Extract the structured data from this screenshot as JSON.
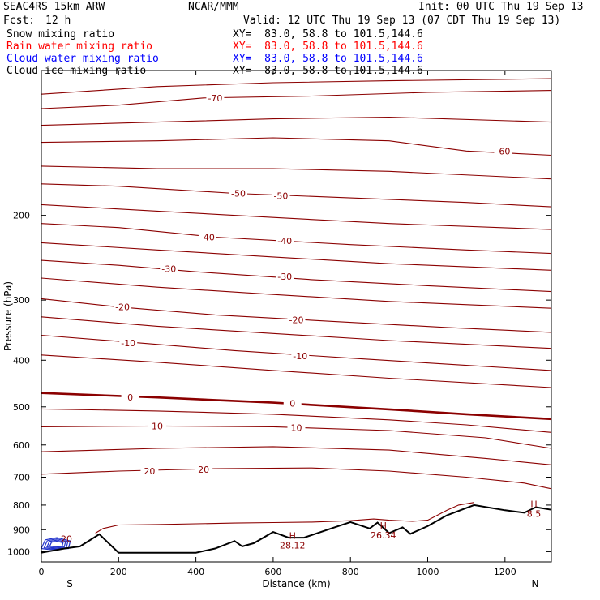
{
  "header": {
    "model": "SEAC4RS 15km ARW",
    "org": "NCAR/MMM",
    "init": "Init: 00 UTC Thu 19 Sep 13",
    "fcst_label": "Fcst:",
    "fcst_value": "12 h",
    "valid": "Valid: 12 UTC Thu 19 Sep 13 (07 CDT Thu 19 Sep 13)"
  },
  "fields": [
    {
      "name": "Snow mixing ratio",
      "xy": "XY=  83.0, 58.8 to 101.5,144.6",
      "color": "#000000"
    },
    {
      "name": "Rain water mixing ratio",
      "xy": "XY=  83.0, 58.8 to 101.5,144.6",
      "color": "#ff0000"
    },
    {
      "name": "Cloud water mixing ratio",
      "xy": "XY=  83.0, 58.8 to 101.5,144.6",
      "color": "#0000ff"
    },
    {
      "name": "Cloud ice mixing ratio",
      "xy": "XY=  83.0, 58.8 to 101.5,144.6",
      "color": "#000000"
    }
  ],
  "colors": {
    "temperature": "#8b0000",
    "cloud_water": "#2233cc",
    "terrain": "#000000"
  },
  "chart_data": {
    "type": "line",
    "xlabel": "Distance (km)",
    "ylabel": "Pressure (hPa)",
    "xlim": [
      0,
      1320
    ],
    "ylim": [
      1050,
      100
    ],
    "y_scale": "log",
    "x_ticks": [
      0,
      200,
      400,
      600,
      800,
      1000,
      1200
    ],
    "y_ticks": [
      200,
      300,
      400,
      500,
      600,
      700,
      800,
      900,
      1000
    ],
    "x_end_labels": {
      "left": "S",
      "right": "N"
    },
    "temperature_contours": [
      {
        "t": -75,
        "pts": [
          [
            0,
            112
          ],
          [
            300,
            108
          ],
          [
            600,
            106
          ],
          [
            900,
            105
          ],
          [
            1320,
            104
          ]
        ]
      },
      {
        "t": -70,
        "pts": [
          [
            0,
            120
          ],
          [
            200,
            118
          ],
          [
            420,
            114
          ],
          [
            700,
            113
          ],
          [
            1000,
            111
          ],
          [
            1320,
            110
          ]
        ]
      },
      {
        "t": -65,
        "pts": [
          [
            0,
            130
          ],
          [
            300,
            128
          ],
          [
            600,
            126
          ],
          [
            900,
            125
          ],
          [
            1320,
            128
          ]
        ]
      },
      {
        "t": -60,
        "pts": [
          [
            0,
            141
          ],
          [
            300,
            140
          ],
          [
            600,
            138
          ],
          [
            900,
            140
          ],
          [
            1100,
            147
          ],
          [
            1320,
            150
          ]
        ]
      },
      {
        "t": -55,
        "pts": [
          [
            0,
            158
          ],
          [
            300,
            160
          ],
          [
            600,
            160
          ],
          [
            900,
            162
          ],
          [
            1320,
            168
          ]
        ]
      },
      {
        "t": -50,
        "pts": [
          [
            0,
            172
          ],
          [
            200,
            174
          ],
          [
            500,
            180
          ],
          [
            800,
            184
          ],
          [
            1100,
            188
          ],
          [
            1320,
            192
          ]
        ]
      },
      {
        "t": -45,
        "pts": [
          [
            0,
            190
          ],
          [
            300,
            196
          ],
          [
            600,
            202
          ],
          [
            900,
            208
          ],
          [
            1320,
            214
          ]
        ]
      },
      {
        "t": -40,
        "pts": [
          [
            0,
            208
          ],
          [
            200,
            212
          ],
          [
            450,
            222
          ],
          [
            800,
            230
          ],
          [
            1100,
            236
          ],
          [
            1320,
            240
          ]
        ]
      },
      {
        "t": -35,
        "pts": [
          [
            0,
            228
          ],
          [
            300,
            236
          ],
          [
            600,
            244
          ],
          [
            900,
            252
          ],
          [
            1320,
            260
          ]
        ]
      },
      {
        "t": -30,
        "pts": [
          [
            0,
            248
          ],
          [
            200,
            254
          ],
          [
            400,
            262
          ],
          [
            700,
            272
          ],
          [
            1000,
            280
          ],
          [
            1320,
            288
          ]
        ]
      },
      {
        "t": -25,
        "pts": [
          [
            0,
            270
          ],
          [
            300,
            282
          ],
          [
            600,
            292
          ],
          [
            900,
            302
          ],
          [
            1320,
            312
          ]
        ]
      },
      {
        "t": -20,
        "pts": [
          [
            0,
            298
          ],
          [
            200,
            310
          ],
          [
            450,
            322
          ],
          [
            750,
            332
          ],
          [
            1050,
            342
          ],
          [
            1320,
            350
          ]
        ]
      },
      {
        "t": -15,
        "pts": [
          [
            0,
            325
          ],
          [
            300,
            340
          ],
          [
            600,
            352
          ],
          [
            900,
            364
          ],
          [
            1320,
            378
          ]
        ]
      },
      {
        "t": -10,
        "pts": [
          [
            0,
            355
          ],
          [
            250,
            368
          ],
          [
            500,
            382
          ],
          [
            800,
            396
          ],
          [
            1100,
            410
          ],
          [
            1320,
            420
          ]
        ]
      },
      {
        "t": -5,
        "pts": [
          [
            0,
            390
          ],
          [
            300,
            404
          ],
          [
            600,
            420
          ],
          [
            900,
            436
          ],
          [
            1320,
            456
          ]
        ]
      },
      {
        "t": 0,
        "pts": [
          [
            0,
            468
          ],
          [
            300,
            478
          ],
          [
            600,
            490
          ],
          [
            900,
            506
          ],
          [
            1100,
            518
          ],
          [
            1320,
            530
          ]
        ]
      },
      {
        "t": 5,
        "pts": [
          [
            0,
            505
          ],
          [
            300,
            510
          ],
          [
            600,
            518
          ],
          [
            900,
            532
          ],
          [
            1100,
            545
          ],
          [
            1320,
            565
          ]
        ]
      },
      {
        "t": 10,
        "pts": [
          [
            0,
            550
          ],
          [
            300,
            548
          ],
          [
            600,
            550
          ],
          [
            900,
            560
          ],
          [
            1150,
            580
          ],
          [
            1320,
            610
          ]
        ]
      },
      {
        "t": 15,
        "pts": [
          [
            0,
            620
          ],
          [
            300,
            610
          ],
          [
            600,
            605
          ],
          [
            900,
            615
          ],
          [
            1150,
            640
          ],
          [
            1320,
            660
          ]
        ]
      },
      {
        "t": 20,
        "pts": [
          [
            0,
            690
          ],
          [
            200,
            680
          ],
          [
            450,
            672
          ],
          [
            700,
            670
          ],
          [
            900,
            680
          ],
          [
            1100,
            700
          ],
          [
            1250,
            720
          ],
          [
            1320,
            740
          ]
        ]
      }
    ],
    "temperature_labels": [
      {
        "text": "-70",
        "x": 450,
        "p": 114
      },
      {
        "text": "-60",
        "x": 1195,
        "p": 147
      },
      {
        "text": "-50",
        "x": 510,
        "p": 180
      },
      {
        "text": "-50",
        "x": 620,
        "p": 182
      },
      {
        "text": "-40",
        "x": 430,
        "p": 222
      },
      {
        "text": "-40",
        "x": 630,
        "p": 226
      },
      {
        "text": "-30",
        "x": 330,
        "p": 258
      },
      {
        "text": "-30",
        "x": 630,
        "p": 268
      },
      {
        "text": "-20",
        "x": 210,
        "p": 310
      },
      {
        "text": "-20",
        "x": 660,
        "p": 330
      },
      {
        "text": "-10",
        "x": 225,
        "p": 368
      },
      {
        "text": "-10",
        "x": 670,
        "p": 392
      },
      {
        "text": "0",
        "x": 230,
        "p": 478
      },
      {
        "text": "0",
        "x": 650,
        "p": 492
      },
      {
        "text": "10",
        "x": 300,
        "p": 548
      },
      {
        "text": "10",
        "x": 660,
        "p": 552
      },
      {
        "text": "20",
        "x": 280,
        "p": 680
      },
      {
        "text": "20",
        "x": 420,
        "p": 675
      }
    ],
    "terrain": [
      [
        0,
        1005
      ],
      [
        60,
        985
      ],
      [
        100,
        975
      ],
      [
        150,
        920
      ],
      [
        200,
        1005
      ],
      [
        300,
        1005
      ],
      [
        400,
        1005
      ],
      [
        450,
        985
      ],
      [
        500,
        950
      ],
      [
        520,
        975
      ],
      [
        550,
        960
      ],
      [
        600,
        910
      ],
      [
        640,
        935
      ],
      [
        680,
        935
      ],
      [
        750,
        895
      ],
      [
        800,
        868
      ],
      [
        850,
        895
      ],
      [
        870,
        870
      ],
      [
        900,
        915
      ],
      [
        935,
        890
      ],
      [
        955,
        918
      ],
      [
        1000,
        885
      ],
      [
        1050,
        840
      ],
      [
        1120,
        800
      ],
      [
        1200,
        820
      ],
      [
        1250,
        830
      ],
      [
        1280,
        808
      ],
      [
        1320,
        818
      ]
    ],
    "rain_region": [
      [
        140,
        915
      ],
      [
        160,
        895
      ],
      [
        200,
        880
      ],
      [
        300,
        878
      ],
      [
        400,
        875
      ],
      [
        500,
        872
      ],
      [
        600,
        870
      ],
      [
        700,
        868
      ],
      [
        800,
        862
      ],
      [
        860,
        855
      ],
      [
        900,
        860
      ],
      [
        960,
        865
      ],
      [
        1000,
        860
      ],
      [
        1050,
        820
      ],
      [
        1080,
        800
      ],
      [
        1120,
        790
      ]
    ],
    "cloud_water": [
      [
        10,
        945
      ],
      [
        40,
        935
      ],
      [
        75,
        950
      ],
      [
        70,
        985
      ],
      [
        20,
        990
      ],
      [
        0,
        985
      ]
    ],
    "highs": [
      {
        "text": "H",
        "value": "28.12",
        "x": 650,
        "p": 940
      },
      {
        "text": "H",
        "value": "26.34",
        "x": 885,
        "p": 895
      },
      {
        "text": "H",
        "value": "8.5",
        "x": 1275,
        "p": 808
      }
    ],
    "extra_labels": [
      {
        "text": "20",
        "x": 65,
        "p": 940
      }
    ]
  }
}
